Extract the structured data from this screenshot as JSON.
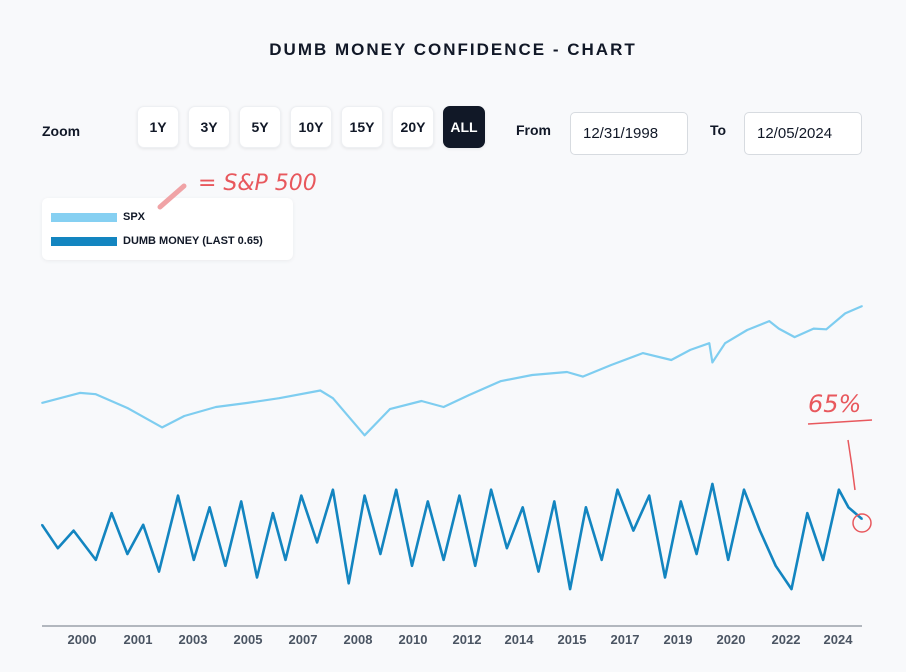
{
  "title": "DUMB MONEY CONFIDENCE - CHART",
  "controls": {
    "zoom_label": "Zoom",
    "zoom_buttons": [
      "1Y",
      "3Y",
      "5Y",
      "10Y",
      "15Y",
      "20Y",
      "ALL"
    ],
    "active_zoom": "ALL",
    "from_label": "From",
    "from_value": "12/31/1998",
    "to_label": "To",
    "to_value": "12/05/2024"
  },
  "legend": {
    "spx_label": "SPX",
    "dumb_money_label": "DUMB MONEY (LAST 0.65)"
  },
  "annotations": {
    "spx_note": "= S&P 500",
    "last_value_note": "65%"
  },
  "colors": {
    "spx": "#7ecdf0",
    "dumb_money": "#1385c0",
    "annotation": "#e8585d",
    "active_button": "#111827"
  },
  "chart_data": {
    "type": "line",
    "x_range": [
      1999.0,
      2024.93
    ],
    "x_tick_labels": [
      "2000",
      "2001",
      "2003",
      "2005",
      "2007",
      "2008",
      "2010",
      "2012",
      "2014",
      "2015",
      "2017",
      "2019",
      "2020",
      "2022",
      "2024"
    ],
    "x_tick_years": [
      2000,
      2001,
      2003,
      2005,
      2007,
      2008,
      2010,
      2012,
      2014,
      2015,
      2017,
      2019,
      2020,
      2022,
      2024
    ],
    "series": [
      {
        "name": "SPX",
        "axis": "left-log",
        "x": [
          1999.0,
          2000.2,
          2000.7,
          2001.7,
          2002.8,
          2003.5,
          2004.5,
          2005.5,
          2006.5,
          2007.8,
          2008.2,
          2009.2,
          2010.0,
          2011.0,
          2011.7,
          2012.5,
          2013.5,
          2014.5,
          2015.6,
          2016.1,
          2017.0,
          2018.0,
          2018.9,
          2019.5,
          2020.1,
          2020.2,
          2020.6,
          2021.3,
          2022.0,
          2022.3,
          2022.8,
          2023.4,
          2023.8,
          2024.4,
          2024.93
        ],
        "values": [
          1229,
          1450,
          1420,
          1130,
          820,
          990,
          1150,
          1230,
          1330,
          1510,
          1330,
          720,
          1110,
          1270,
          1150,
          1400,
          1760,
          1950,
          2050,
          1900,
          2300,
          2800,
          2500,
          2950,
          3300,
          2400,
          3300,
          4100,
          4750,
          4200,
          3650,
          4200,
          4150,
          5400,
          6090
        ]
      },
      {
        "name": "DUMB MONEY",
        "axis": "right",
        "y_range": [
          0,
          1
        ],
        "last_value": 0.65,
        "x": [
          1999.0,
          1999.5,
          2000.0,
          2000.7,
          2001.2,
          2001.7,
          2002.2,
          2002.7,
          2003.3,
          2003.8,
          2004.3,
          2004.8,
          2005.3,
          2005.8,
          2006.3,
          2006.7,
          2007.2,
          2007.7,
          2008.2,
          2008.7,
          2009.2,
          2009.7,
          2010.2,
          2010.7,
          2011.2,
          2011.7,
          2012.2,
          2012.7,
          2013.2,
          2013.7,
          2014.2,
          2014.7,
          2015.2,
          2015.7,
          2016.2,
          2016.7,
          2017.2,
          2017.7,
          2018.2,
          2018.7,
          2019.2,
          2019.7,
          2020.2,
          2020.7,
          2021.2,
          2021.7,
          2022.2,
          2022.7,
          2023.2,
          2023.7,
          2024.2,
          2024.5,
          2024.93
        ],
        "values": [
          0.6,
          0.4,
          0.55,
          0.3,
          0.7,
          0.35,
          0.6,
          0.2,
          0.85,
          0.3,
          0.75,
          0.25,
          0.8,
          0.15,
          0.7,
          0.3,
          0.85,
          0.45,
          0.9,
          0.1,
          0.85,
          0.35,
          0.9,
          0.25,
          0.8,
          0.3,
          0.85,
          0.25,
          0.9,
          0.4,
          0.75,
          0.2,
          0.8,
          0.05,
          0.75,
          0.3,
          0.9,
          0.55,
          0.85,
          0.15,
          0.8,
          0.35,
          0.95,
          0.3,
          0.9,
          0.55,
          0.25,
          0.05,
          0.7,
          0.3,
          0.9,
          0.75,
          0.65
        ]
      }
    ]
  }
}
